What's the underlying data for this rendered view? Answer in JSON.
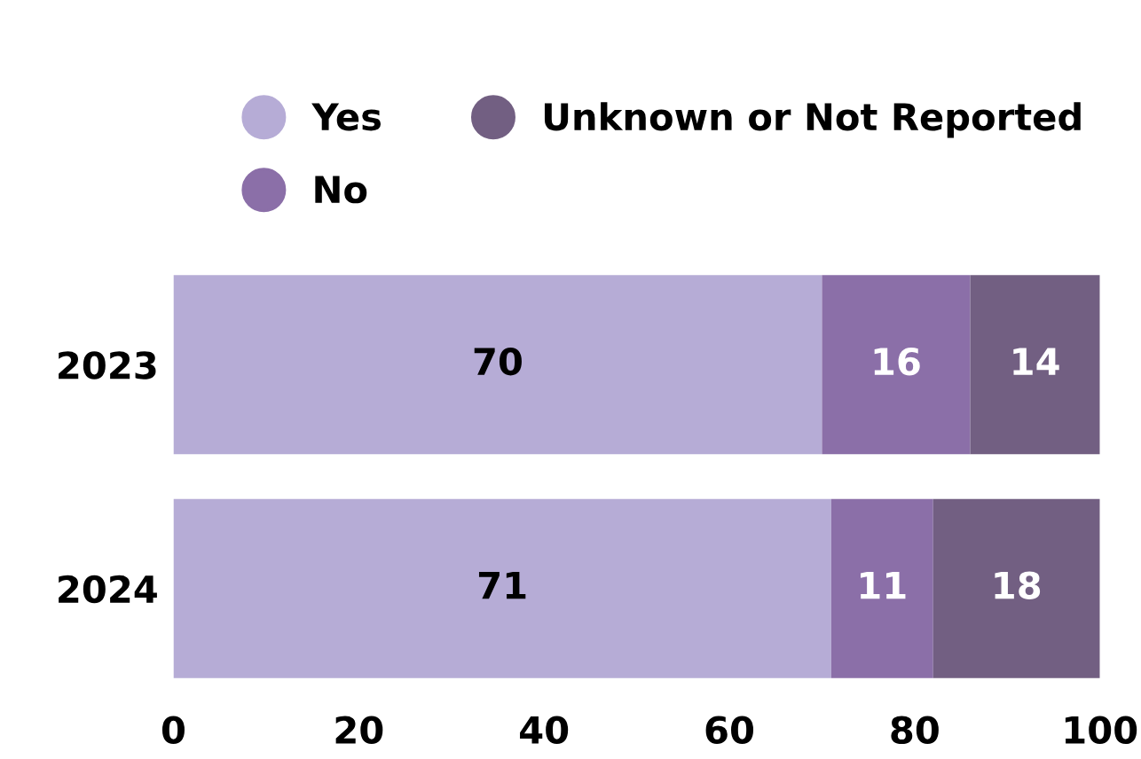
{
  "chart_data": {
    "type": "bar",
    "orientation": "horizontal",
    "stacked": true,
    "categories": [
      "2023",
      "2024"
    ],
    "series": [
      {
        "name": "Yes",
        "color": "#b6acd6",
        "values": [
          70,
          71
        ]
      },
      {
        "name": "No",
        "color": "#8b6fa8",
        "values": [
          16,
          11
        ]
      },
      {
        "name": "Unknown or Not Reported",
        "color": "#725f82",
        "values": [
          14,
          18
        ]
      }
    ],
    "xlim": [
      0,
      100
    ],
    "xticks": [
      0,
      20,
      40,
      60,
      80,
      100
    ],
    "data_labels": true,
    "legend": "top",
    "grid": false
  }
}
